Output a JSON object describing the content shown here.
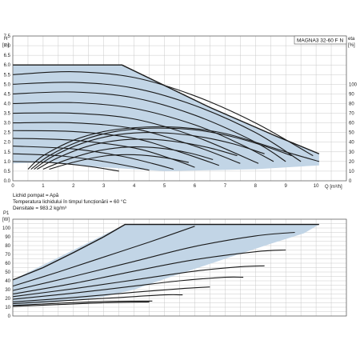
{
  "chart_data": [
    {
      "type": "line",
      "model": "MAGNA3 32-60 F N",
      "y_axis": {
        "label": "H",
        "unit": "[m]",
        "range": [
          0,
          7.5
        ],
        "ticks": [
          "0.0",
          "0.5",
          "1.0",
          "1.5",
          "2.0",
          "2.5",
          "3.0",
          "3.5",
          "4.0",
          "4.5",
          "5.0",
          "5.5",
          "6.0",
          "6.5",
          "7.0",
          "7.5"
        ]
      },
      "x_axis": {
        "label": "Q [m³/h]",
        "range": [
          0,
          11
        ],
        "ticks": [
          "0",
          "1",
          "2",
          "3",
          "4",
          "5",
          "6",
          "7",
          "8",
          "9",
          "10"
        ]
      },
      "right_axis": {
        "label": "eta",
        "unit": "[%]",
        "range": [
          0,
          150
        ],
        "ticks": [
          "0",
          "10",
          "20",
          "30",
          "40",
          "50",
          "60",
          "70",
          "80",
          "90",
          "100"
        ]
      },
      "conditions": [
        "Lichid pompat = Apă",
        "Temperatura lichidului în timpul funcționării = 60 °C",
        "Densitate = 983.2 kg/m³"
      ],
      "operating_region": [
        [
          0,
          6.0
        ],
        [
          3.6,
          6.0
        ],
        [
          6.5,
          3.8
        ],
        [
          8.7,
          2.3
        ],
        [
          10.1,
          1.4
        ],
        [
          10.1,
          0.8
        ],
        [
          8.0,
          0.6
        ],
        [
          5.0,
          0.5
        ],
        [
          3.0,
          0.7
        ],
        [
          1.0,
          0.95
        ],
        [
          0,
          0.9
        ]
      ],
      "head_curves": [
        {
          "points": [
            [
              0,
              6.0
            ],
            [
              3.6,
              6.0
            ],
            [
              6.5,
              3.8
            ],
            [
              8.7,
              2.3
            ],
            [
              10.1,
              1.4
            ]
          ]
        },
        {
          "points": [
            [
              0,
              5.5
            ],
            [
              2.0,
              5.65
            ],
            [
              4.0,
              5.35
            ],
            [
              6.0,
              4.4
            ],
            [
              8.0,
              3.0
            ],
            [
              9.9,
              1.3
            ]
          ]
        },
        {
          "points": [
            [
              0,
              5.0
            ],
            [
              2.0,
              5.1
            ],
            [
              4.0,
              4.8
            ],
            [
              6.0,
              3.9
            ],
            [
              8.0,
              2.5
            ],
            [
              9.5,
              1.0
            ]
          ]
        },
        {
          "points": [
            [
              0,
              4.5
            ],
            [
              2.0,
              4.6
            ],
            [
              4.0,
              4.3
            ],
            [
              6.0,
              3.4
            ],
            [
              8.0,
              2.0
            ],
            [
              9.0,
              1.0
            ]
          ]
        },
        {
          "points": [
            [
              0,
              4.0
            ],
            [
              2.0,
              4.05
            ],
            [
              4.0,
              3.75
            ],
            [
              6.0,
              2.9
            ],
            [
              7.5,
              1.9
            ],
            [
              8.6,
              1.0
            ]
          ]
        },
        {
          "points": [
            [
              0,
              3.5
            ],
            [
              2.0,
              3.5
            ],
            [
              4.0,
              3.2
            ],
            [
              6.0,
              2.3
            ],
            [
              8.1,
              0.9
            ]
          ]
        },
        {
          "points": [
            [
              0,
              3.0
            ],
            [
              2.0,
              3.0
            ],
            [
              4.0,
              2.7
            ],
            [
              6.0,
              1.8
            ],
            [
              7.5,
              0.9
            ]
          ]
        },
        {
          "points": [
            [
              0,
              2.6
            ],
            [
              2.0,
              2.55
            ],
            [
              4.0,
              2.2
            ],
            [
              5.5,
              1.5
            ],
            [
              6.8,
              0.8
            ]
          ]
        },
        {
          "points": [
            [
              0,
              2.2
            ],
            [
              2.0,
              2.1
            ],
            [
              4.0,
              1.7
            ],
            [
              5.3,
              1.1
            ],
            [
              6.0,
              0.7
            ]
          ]
        },
        {
          "points": [
            [
              0,
              1.8
            ],
            [
              2.0,
              1.65
            ],
            [
              3.5,
              1.3
            ],
            [
              4.6,
              0.9
            ],
            [
              5.3,
              0.6
            ]
          ]
        },
        {
          "points": [
            [
              0,
              1.4
            ],
            [
              1.5,
              1.3
            ],
            [
              3.0,
              1.0
            ],
            [
              4.5,
              0.55
            ]
          ]
        },
        {
          "points": [
            [
              0,
              1.0
            ],
            [
              1.2,
              0.95
            ],
            [
              2.5,
              0.75
            ],
            [
              3.5,
              0.5
            ]
          ]
        }
      ],
      "efficiency_curves": [
        {
          "points": [
            [
              0.5,
              0.6
            ],
            [
              1.0,
              1.3
            ],
            [
              2.0,
              2.1
            ],
            [
              3.0,
              2.55
            ],
            [
              4.0,
              2.75
            ],
            [
              5.0,
              2.8
            ],
            [
              6.0,
              2.7
            ],
            [
              7.0,
              2.45
            ],
            [
              8.0,
              2.0
            ],
            [
              9.0,
              1.5
            ],
            [
              10.1,
              1.0
            ]
          ]
        },
        {
          "points": [
            [
              0.6,
              0.6
            ],
            [
              1.2,
              1.3
            ],
            [
              2.2,
              2.05
            ],
            [
              3.2,
              2.5
            ],
            [
              4.2,
              2.7
            ],
            [
              5.2,
              2.72
            ],
            [
              6.2,
              2.6
            ],
            [
              7.2,
              2.3
            ],
            [
              8.2,
              1.85
            ],
            [
              9.2,
              1.3
            ]
          ]
        },
        {
          "points": [
            [
              0.7,
              0.6
            ],
            [
              1.3,
              1.25
            ],
            [
              2.3,
              1.95
            ],
            [
              3.3,
              2.35
            ],
            [
              4.3,
              2.5
            ],
            [
              5.3,
              2.45
            ],
            [
              6.3,
              2.25
            ],
            [
              7.3,
              1.9
            ],
            [
              8.3,
              1.4
            ]
          ]
        },
        {
          "points": [
            [
              0.8,
              0.6
            ],
            [
              1.5,
              1.2
            ],
            [
              2.5,
              1.8
            ],
            [
              3.5,
              2.1
            ],
            [
              4.5,
              2.15
            ],
            [
              5.5,
              2.0
            ],
            [
              6.5,
              1.7
            ],
            [
              7.4,
              1.3
            ]
          ]
        },
        {
          "points": [
            [
              1.0,
              0.6
            ],
            [
              1.8,
              1.1
            ],
            [
              2.8,
              1.55
            ],
            [
              3.8,
              1.75
            ],
            [
              4.8,
              1.7
            ],
            [
              5.8,
              1.45
            ],
            [
              6.6,
              1.1
            ]
          ]
        },
        {
          "points": [
            [
              1.2,
              0.6
            ],
            [
              2.1,
              1.0
            ],
            [
              3.1,
              1.3
            ],
            [
              4.0,
              1.35
            ],
            [
              5.0,
              1.2
            ],
            [
              5.8,
              0.95
            ]
          ]
        }
      ]
    },
    {
      "type": "line",
      "y_axis": {
        "label": "P1",
        "unit": "[W]",
        "range": [
          0,
          110
        ],
        "ticks": [
          "0",
          "10",
          "20",
          "30",
          "40",
          "50",
          "60",
          "70",
          "80",
          "90",
          "100"
        ]
      },
      "x_axis": {
        "range": [
          0,
          11
        ]
      },
      "operating_region": [
        [
          0,
          41
        ],
        [
          3.7,
          104
        ],
        [
          10.1,
          104
        ],
        [
          9.6,
          94
        ],
        [
          8.5,
          82
        ],
        [
          7.0,
          65
        ],
        [
          5.0,
          42
        ],
        [
          4.0,
          30
        ],
        [
          3.0,
          22
        ],
        [
          1.5,
          16
        ],
        [
          0,
          12
        ]
      ],
      "power_curves": [
        {
          "points": [
            [
              0,
              41
            ],
            [
              1.0,
              55
            ],
            [
              2.0,
              72
            ],
            [
              3.0,
              90
            ],
            [
              3.7,
              104
            ],
            [
              10.1,
              104
            ]
          ]
        },
        {
          "points": [
            [
              0,
              34
            ],
            [
              1.5,
              50
            ],
            [
              3.0,
              67
            ],
            [
              4.5,
              84
            ],
            [
              6.0,
              102
            ]
          ]
        },
        {
          "points": [
            [
              0,
              29
            ],
            [
              2.0,
              45
            ],
            [
              4.0,
              62
            ],
            [
              6.0,
              79
            ],
            [
              8.0,
              91
            ],
            [
              9.3,
              95
            ]
          ]
        },
        {
          "points": [
            [
              0,
              25
            ],
            [
              2.0,
              37
            ],
            [
              4.0,
              51
            ],
            [
              6.0,
              64
            ],
            [
              8.0,
              73
            ],
            [
              9.0,
              75
            ]
          ]
        },
        {
          "points": [
            [
              0,
              22
            ],
            [
              2.0,
              31
            ],
            [
              4.0,
              41
            ],
            [
              6.0,
              51
            ],
            [
              7.5,
              56
            ],
            [
              8.3,
              57
            ]
          ]
        },
        {
          "points": [
            [
              0,
              19
            ],
            [
              2.0,
              26
            ],
            [
              4.0,
              34
            ],
            [
              5.5,
              40
            ],
            [
              7.0,
              44
            ],
            [
              7.6,
              44
            ]
          ]
        },
        {
          "points": [
            [
              0,
              16
            ],
            [
              2.0,
              21
            ],
            [
              4.0,
              27
            ],
            [
              5.5,
              31
            ],
            [
              6.5,
              33
            ]
          ]
        },
        {
          "points": [
            [
              0,
              14
            ],
            [
              2.0,
              18
            ],
            [
              3.5,
              21
            ],
            [
              5.0,
              24
            ],
            [
              5.6,
              24
            ]
          ]
        },
        {
          "points": [
            [
              0,
              12
            ],
            [
              1.5,
              14.5
            ],
            [
              3.0,
              16.5
            ],
            [
              4.6,
              17
            ]
          ]
        },
        {
          "points": [
            [
              0,
              11
            ],
            [
              1.5,
              13
            ],
            [
              3.0,
              15
            ],
            [
              4.5,
              16
            ]
          ]
        }
      ]
    }
  ]
}
